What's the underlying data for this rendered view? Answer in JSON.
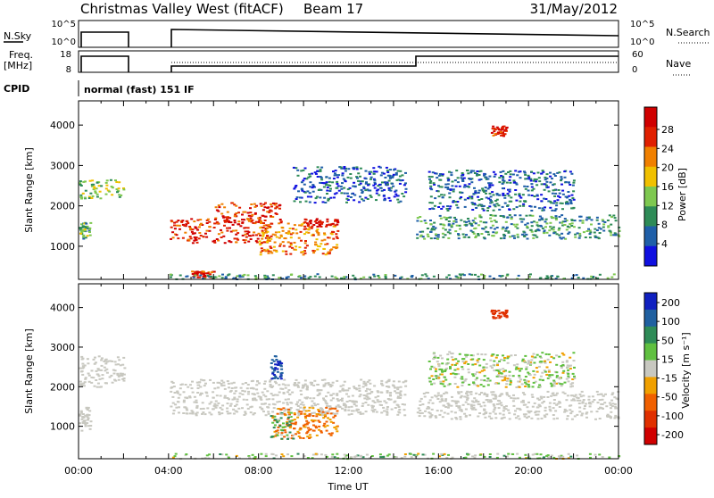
{
  "header": {
    "title": "Christmas Valley West (fitACF)",
    "beam": "Beam 17",
    "date": "31/May/2012"
  },
  "top_panels": {
    "nsky_label": "N.Sky",
    "nsky_ticks": [
      "10^5",
      "10^0"
    ],
    "nsearch_label": "N.Search",
    "nsearch_ticks": [
      "10^5",
      "10^0"
    ],
    "freq_label": "Freq.",
    "freq_unit": "[MHz]",
    "freq_ticks": [
      "18",
      "8"
    ],
    "nave_label": "Nave",
    "nave_ticks": [
      "60",
      "0"
    ],
    "cpid_label": "CPID",
    "cpid_value": "normal (fast) 151 IF"
  },
  "chart_data": [
    {
      "type": "heatmap",
      "name": "power",
      "ylabel": "Slant Range [km]",
      "ylim": [
        180,
        4600
      ],
      "yticks": [
        "1000",
        "2000",
        "3000",
        "4000"
      ],
      "xlim": [
        0,
        24
      ],
      "x_ticks_hours": [
        0,
        2,
        4,
        6,
        8,
        10,
        12,
        14,
        16,
        18,
        20,
        22,
        24
      ],
      "data_gap_hours": [
        2.0,
        4.0
      ],
      "colorbar": {
        "label": "Power [dB]",
        "range": [
          0,
          32
        ],
        "tick_labels": [
          "4",
          "8",
          "12",
          "16",
          "20",
          "24",
          "28"
        ],
        "colors": [
          "#1010e0",
          "#1f5fa8",
          "#2e8b57",
          "#7ec850",
          "#f0c000",
          "#f08000",
          "#e02000",
          "#d00000"
        ]
      },
      "regions": [
        {
          "t": [
            0.0,
            2.0
          ],
          "r": [
            2200,
            2700
          ],
          "level": 14
        },
        {
          "t": [
            0.0,
            0.5
          ],
          "r": [
            1200,
            1600
          ],
          "level": 12
        },
        {
          "t": [
            4.0,
            8.5
          ],
          "r": [
            1100,
            1700
          ],
          "level": 27
        },
        {
          "t": [
            6.0,
            9.0
          ],
          "r": [
            1600,
            2100
          ],
          "level": 26
        },
        {
          "t": [
            8.0,
            11.5
          ],
          "r": [
            800,
            1600
          ],
          "level": 22
        },
        {
          "t": [
            10.0,
            11.5
          ],
          "r": [
            1500,
            1700
          ],
          "level": 30
        },
        {
          "t": [
            9.5,
            14.5
          ],
          "r": [
            2100,
            3000
          ],
          "level": 6
        },
        {
          "t": [
            15.0,
            24.0
          ],
          "r": [
            1200,
            1800
          ],
          "level": 10
        },
        {
          "t": [
            15.5,
            22.0
          ],
          "r": [
            1900,
            2900
          ],
          "level": 7
        },
        {
          "t": [
            18.3,
            19.0
          ],
          "r": [
            3750,
            4000
          ],
          "level": 28
        },
        {
          "t": [
            5.0,
            6.0
          ],
          "r": [
            250,
            400
          ],
          "level": 28
        },
        {
          "t": [
            4.0,
            24.0
          ],
          "r": [
            200,
            330
          ],
          "level": 10
        }
      ]
    },
    {
      "type": "heatmap",
      "name": "velocity",
      "ylabel": "Slant Range [km]",
      "ylim": [
        180,
        4600
      ],
      "yticks": [
        "1000",
        "2000",
        "3000",
        "4000"
      ],
      "xlim": [
        0,
        24
      ],
      "xlabel": "Time UT",
      "x_tick_labels": [
        "00:00",
        "04:00",
        "08:00",
        "12:00",
        "16:00",
        "20:00",
        "00:00"
      ],
      "data_gap_hours": [
        2.0,
        4.0
      ],
      "colorbar": {
        "label": "Velocity [m s⁻¹]",
        "tick_labels": [
          "200",
          "100",
          "50",
          "15",
          "-15",
          "-50",
          "-100",
          "-200"
        ],
        "colors": [
          "#1020c0",
          "#2060a0",
          "#2e8b57",
          "#60c040",
          "#c8c8c0",
          "#f0a000",
          "#f06000",
          "#e03000",
          "#d00000"
        ]
      },
      "regions": [
        {
          "t": [
            0.0,
            2.0
          ],
          "r": [
            2000,
            2800
          ],
          "v": 0
        },
        {
          "t": [
            0.0,
            0.5
          ],
          "r": [
            900,
            1500
          ],
          "v": 0
        },
        {
          "t": [
            4.0,
            14.5
          ],
          "r": [
            1300,
            2200
          ],
          "v": 0
        },
        {
          "t": [
            8.5,
            11.5
          ],
          "r": [
            700,
            1500
          ],
          "v": -60
        },
        {
          "t": [
            8.5,
            9.5
          ],
          "r": [
            700,
            1400
          ],
          "v": 40
        },
        {
          "t": [
            15.0,
            24.0
          ],
          "r": [
            1200,
            1900
          ],
          "v": 0
        },
        {
          "t": [
            15.5,
            22.0
          ],
          "r": [
            2000,
            2900
          ],
          "v": 10
        },
        {
          "t": [
            18.3,
            19.0
          ],
          "r": [
            3750,
            3950
          ],
          "v": -150
        },
        {
          "t": [
            8.5,
            9.0
          ],
          "r": [
            2200,
            2800
          ],
          "v": 200
        },
        {
          "t": [
            4.0,
            24.0
          ],
          "r": [
            200,
            330
          ],
          "v": 20
        }
      ]
    }
  ]
}
